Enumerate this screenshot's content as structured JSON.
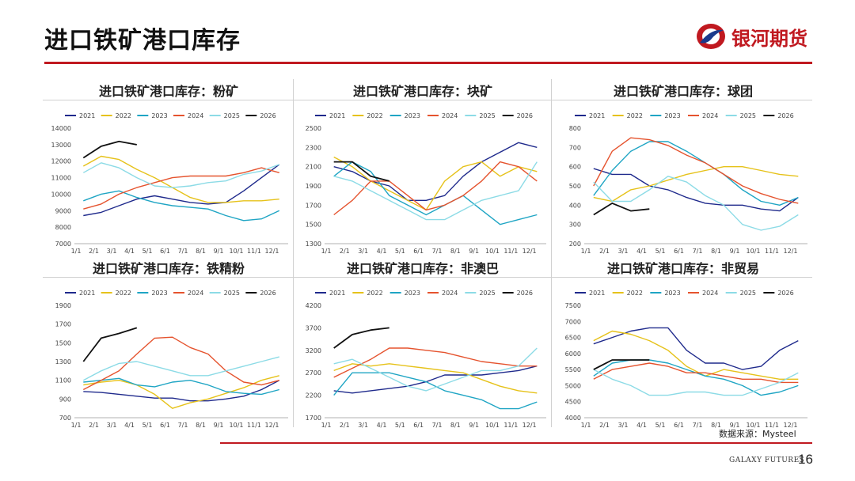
{
  "header": {
    "title": "进口铁矿港口库存",
    "brand": "银河期货"
  },
  "colors": {
    "accent": "#c01920"
  },
  "legend_years": [
    "2021",
    "2022",
    "2023",
    "2024",
    "2025",
    "2026"
  ],
  "series_colors": [
    "#1f2a8c",
    "#e6c21a",
    "#1fa5c4",
    "#e5532e",
    "#8cdbe6",
    "#111111"
  ],
  "x_ticks": [
    "1/1",
    "2/1",
    "3/1",
    "4/1",
    "5/1",
    "6/1",
    "7/1",
    "8/1",
    "9/1",
    "10/1",
    "11/1",
    "12/1"
  ],
  "source": "数据来源：Mysteel",
  "footer": {
    "brand": "GALAXY FUTURES",
    "page": "16"
  },
  "chart_data": [
    {
      "type": "line",
      "title": "进口铁矿港口库存：粉矿",
      "ylim": [
        7000,
        14000
      ],
      "yticks": [
        7000,
        8000,
        9000,
        10000,
        11000,
        12000,
        13000,
        14000
      ],
      "series": [
        {
          "name": "2021",
          "values": [
            8700,
            8900,
            9300,
            9700,
            9900,
            9700,
            9500,
            9400,
            9500,
            10200,
            11000,
            11800
          ]
        },
        {
          "name": "2022",
          "values": [
            11700,
            12300,
            12100,
            11500,
            11000,
            10400,
            9800,
            9500,
            9500,
            9600,
            9600,
            9700
          ]
        },
        {
          "name": "2023",
          "values": [
            9600,
            10000,
            10200,
            9800,
            9500,
            9300,
            9200,
            9100,
            8700,
            8400,
            8500,
            9000
          ]
        },
        {
          "name": "2024",
          "values": [
            9100,
            9400,
            10000,
            10400,
            10700,
            11000,
            11100,
            11100,
            11100,
            11300,
            11600,
            11300
          ]
        },
        {
          "name": "2025",
          "values": [
            11300,
            11900,
            11600,
            11000,
            10500,
            10400,
            10500,
            10700,
            10800,
            11200,
            11400,
            11800
          ]
        },
        {
          "name": "2026",
          "values": [
            12200,
            12900,
            13200,
            13000
          ]
        }
      ]
    },
    {
      "type": "line",
      "title": "进口铁矿港口库存：块矿",
      "ylim": [
        1300,
        2500
      ],
      "yticks": [
        1300,
        1500,
        1700,
        1900,
        2100,
        2300,
        2500
      ],
      "series": [
        {
          "name": "2021",
          "values": [
            2100,
            2050,
            1950,
            1900,
            1750,
            1750,
            1800,
            2000,
            2150,
            2250,
            2350,
            2300
          ]
        },
        {
          "name": "2022",
          "values": [
            2200,
            2100,
            1950,
            1850,
            1750,
            1650,
            1950,
            2100,
            2150,
            2000,
            2100,
            2050
          ]
        },
        {
          "name": "2023",
          "values": [
            2000,
            2150,
            2050,
            1800,
            1700,
            1600,
            1700,
            1800,
            1650,
            1500,
            1550,
            1600
          ]
        },
        {
          "name": "2024",
          "values": [
            1600,
            1750,
            1950,
            1950,
            1800,
            1650,
            1700,
            1800,
            1950,
            2150,
            2100,
            1950
          ]
        },
        {
          "name": "2025",
          "values": [
            2000,
            1950,
            1850,
            1750,
            1650,
            1550,
            1550,
            1650,
            1750,
            1800,
            1850,
            2150
          ]
        },
        {
          "name": "2026",
          "values": [
            2150,
            2150,
            2000,
            1950
          ]
        }
      ]
    },
    {
      "type": "line",
      "title": "进口铁矿港口库存：球团",
      "ylim": [
        200,
        800
      ],
      "yticks": [
        200,
        300,
        400,
        500,
        600,
        700,
        800
      ],
      "series": [
        {
          "name": "2021",
          "values": [
            590,
            560,
            560,
            500,
            480,
            440,
            410,
            400,
            400,
            380,
            370,
            440
          ]
        },
        {
          "name": "2022",
          "values": [
            440,
            420,
            480,
            500,
            530,
            560,
            580,
            600,
            600,
            580,
            560,
            550
          ]
        },
        {
          "name": "2023",
          "values": [
            450,
            580,
            680,
            730,
            730,
            680,
            620,
            560,
            480,
            420,
            400,
            440
          ]
        },
        {
          "name": "2024",
          "values": [
            500,
            680,
            750,
            740,
            710,
            660,
            620,
            560,
            500,
            460,
            430,
            410
          ]
        },
        {
          "name": "2025",
          "values": [
            520,
            420,
            420,
            480,
            550,
            520,
            450,
            400,
            300,
            270,
            290,
            350
          ]
        },
        {
          "name": "2026",
          "values": [
            350,
            410,
            370,
            380
          ]
        }
      ]
    },
    {
      "type": "line",
      "title": "进口铁矿港口库存：铁精粉",
      "ylim": [
        700,
        1900
      ],
      "yticks": [
        700,
        900,
        1100,
        1300,
        1500,
        1700,
        1900
      ],
      "series": [
        {
          "name": "2021",
          "values": [
            980,
            970,
            950,
            930,
            910,
            910,
            880,
            880,
            900,
            930,
            1000,
            1100
          ]
        },
        {
          "name": "2022",
          "values": [
            1050,
            1080,
            1100,
            1050,
            950,
            800,
            860,
            900,
            960,
            1020,
            1100,
            1150
          ]
        },
        {
          "name": "2023",
          "values": [
            1080,
            1100,
            1120,
            1050,
            1030,
            1080,
            1100,
            1050,
            980,
            960,
            950,
            1000
          ]
        },
        {
          "name": "2024",
          "values": [
            1000,
            1100,
            1200,
            1380,
            1550,
            1560,
            1450,
            1380,
            1200,
            1080,
            1050,
            1100
          ]
        },
        {
          "name": "2025",
          "values": [
            1100,
            1200,
            1280,
            1300,
            1250,
            1200,
            1150,
            1150,
            1200,
            1250,
            1300,
            1350
          ]
        },
        {
          "name": "2026",
          "values": [
            1300,
            1550,
            1600,
            1660
          ]
        }
      ]
    },
    {
      "type": "line",
      "title": "进口铁矿港口库存：非澳巴",
      "ylim": [
        1700,
        4200
      ],
      "yticks": [
        1700,
        2200,
        2700,
        3200,
        3700,
        4200
      ],
      "series": [
        {
          "name": "2021",
          "values": [
            2300,
            2250,
            2300,
            2350,
            2400,
            2500,
            2650,
            2650,
            2650,
            2700,
            2750,
            2850
          ]
        },
        {
          "name": "2022",
          "values": [
            2750,
            2900,
            2850,
            2900,
            2850,
            2800,
            2750,
            2700,
            2550,
            2400,
            2300,
            2250
          ]
        },
        {
          "name": "2023",
          "values": [
            2200,
            2700,
            2700,
            2700,
            2600,
            2500,
            2300,
            2200,
            2100,
            1900,
            1900,
            2050
          ]
        },
        {
          "name": "2024",
          "values": [
            2600,
            2800,
            3000,
            3250,
            3250,
            3200,
            3150,
            3050,
            2950,
            2900,
            2850,
            2850
          ]
        },
        {
          "name": "2025",
          "values": [
            2900,
            3000,
            2800,
            2600,
            2400,
            2300,
            2450,
            2600,
            2750,
            2750,
            2850,
            3250
          ]
        },
        {
          "name": "2026",
          "values": [
            3250,
            3550,
            3650,
            3700
          ]
        }
      ]
    },
    {
      "type": "line",
      "title": "进口铁矿港口库存：非贸易",
      "ylim": [
        4000,
        7500
      ],
      "yticks": [
        4000,
        4500,
        5000,
        5500,
        6000,
        6500,
        7000,
        7500
      ],
      "series": [
        {
          "name": "2021",
          "values": [
            6300,
            6500,
            6700,
            6800,
            6800,
            6100,
            5700,
            5700,
            5500,
            5600,
            6100,
            6400
          ]
        },
        {
          "name": "2022",
          "values": [
            6400,
            6700,
            6600,
            6400,
            6100,
            5600,
            5300,
            5500,
            5400,
            5300,
            5200,
            5200
          ]
        },
        {
          "name": "2023",
          "values": [
            5300,
            5700,
            5800,
            5800,
            5700,
            5500,
            5300,
            5200,
            5000,
            4700,
            4800,
            5000
          ]
        },
        {
          "name": "2024",
          "values": [
            5200,
            5500,
            5600,
            5700,
            5600,
            5400,
            5400,
            5300,
            5200,
            5200,
            5100,
            5100
          ]
        },
        {
          "name": "2025",
          "values": [
            5500,
            5200,
            5000,
            4700,
            4700,
            4800,
            4800,
            4700,
            4700,
            4900,
            5100,
            5400
          ]
        },
        {
          "name": "2026",
          "values": [
            5500,
            5800,
            5800,
            5800
          ]
        }
      ]
    }
  ]
}
